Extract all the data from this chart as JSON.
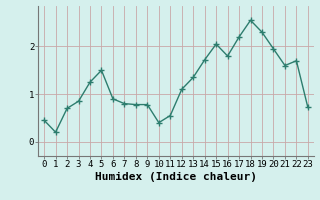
{
  "x": [
    0,
    1,
    2,
    3,
    4,
    5,
    6,
    7,
    8,
    9,
    10,
    11,
    12,
    13,
    14,
    15,
    16,
    17,
    18,
    19,
    20,
    21,
    22,
    23
  ],
  "y": [
    0.45,
    0.2,
    0.7,
    0.85,
    1.25,
    1.5,
    0.9,
    0.8,
    0.78,
    0.78,
    0.4,
    0.55,
    1.1,
    1.35,
    1.72,
    2.05,
    1.8,
    2.2,
    2.55,
    2.3,
    1.95,
    1.6,
    1.7,
    0.72
  ],
  "line_color": "#2d7d6e",
  "marker": "+",
  "markersize": 4,
  "linewidth": 1.0,
  "markeredgewidth": 1.0,
  "xlabel": "Humidex (Indice chaleur)",
  "xlim": [
    -0.5,
    23.5
  ],
  "ylim": [
    -0.3,
    2.85
  ],
  "yticks": [
    0,
    1,
    2
  ],
  "xtick_labels": [
    "0",
    "1",
    "2",
    "3",
    "4",
    "5",
    "6",
    "7",
    "8",
    "9",
    "10",
    "11",
    "12",
    "13",
    "14",
    "15",
    "16",
    "17",
    "18",
    "19",
    "20",
    "21",
    "22",
    "23"
  ],
  "bg_color": "#d5f0ed",
  "grid_color": "#c8a8a8",
  "xlabel_fontsize": 8,
  "tick_fontsize": 6.5,
  "xlabel_fontweight": "bold"
}
